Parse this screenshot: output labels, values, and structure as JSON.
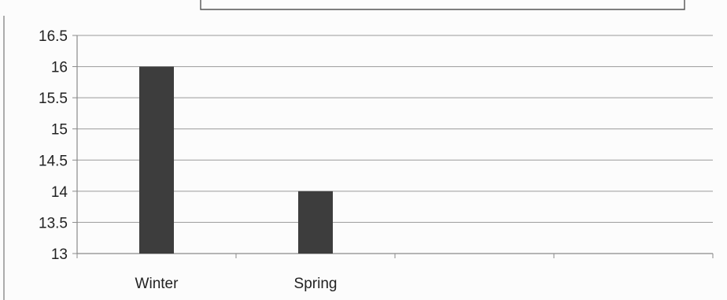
{
  "chart_data": {
    "type": "bar",
    "title": "",
    "xlabel": "",
    "ylabel": "",
    "categories": [
      "Winter",
      "Spring",
      "",
      ""
    ],
    "values": [
      16,
      14,
      null,
      null
    ],
    "ylim": [
      13,
      16.5
    ],
    "yticks": [
      "16.5",
      "16",
      "15.5",
      "15",
      "14.5",
      "14",
      "13.5",
      "13"
    ],
    "grid": true,
    "legend": "none",
    "colors": {
      "bar": "#3d3d3d",
      "grid": "#9a9a9a",
      "axis": "#8a8a8a",
      "frame": "#555555"
    }
  }
}
